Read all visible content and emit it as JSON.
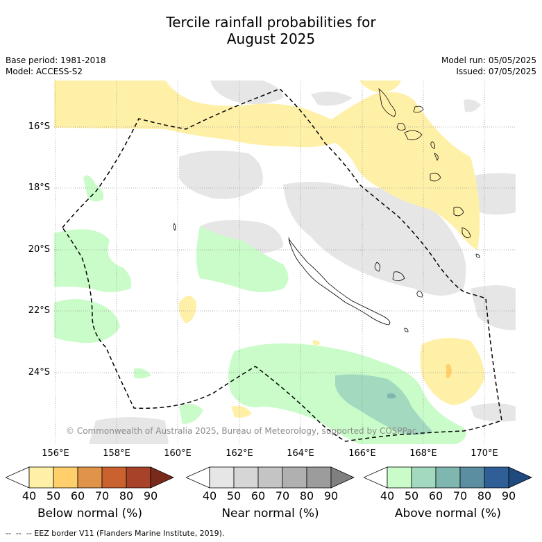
{
  "title_line1": "Tercile rainfall probabilities for",
  "title_line2": "August 2025",
  "base_period": "Base period: 1981-2018",
  "model": "Model: ACCESS-S2",
  "model_run": "Model run: 05/05/2025",
  "issued": "Issued: 07/05/2025",
  "lat_labels": [
    "16°S",
    "18°S",
    "20°S",
    "22°S",
    "24°S"
  ],
  "lon_labels": [
    "156°E",
    "158°E",
    "160°E",
    "162°E",
    "164°E",
    "166°E",
    "168°E",
    "170°E"
  ],
  "copyright": "© Commonwealth of Australia 2025, Bureau of Meteorology, supported by COSPPac",
  "colorbars": [
    {
      "label": "Below normal (%)",
      "ticks": [
        "40",
        "50",
        "60",
        "70",
        "80",
        "90"
      ],
      "colors": [
        "#ffffff",
        "#fff0a8",
        "#fecf6a",
        "#e0944a",
        "#c9622e",
        "#a8432a",
        "#7a2a1a"
      ]
    },
    {
      "label": "Near normal (%)",
      "ticks": [
        "40",
        "50",
        "60",
        "70",
        "80",
        "90"
      ],
      "colors": [
        "#ffffff",
        "#e6e6e6",
        "#d6d6d6",
        "#c4c4c4",
        "#b0b0b0",
        "#9c9c9c",
        "#808080"
      ]
    },
    {
      "label": "Above normal (%)",
      "ticks": [
        "40",
        "50",
        "60",
        "70",
        "80",
        "90"
      ],
      "colors": [
        "#ffffff",
        "#c9fcc9",
        "#a3d9bf",
        "#7fb6b0",
        "#5b8ea0",
        "#2f5f96",
        "#1f4a7e"
      ]
    }
  ],
  "footer": "--  --  -- EEZ border V11 (Flanders Marine Institute, 2019)."
}
